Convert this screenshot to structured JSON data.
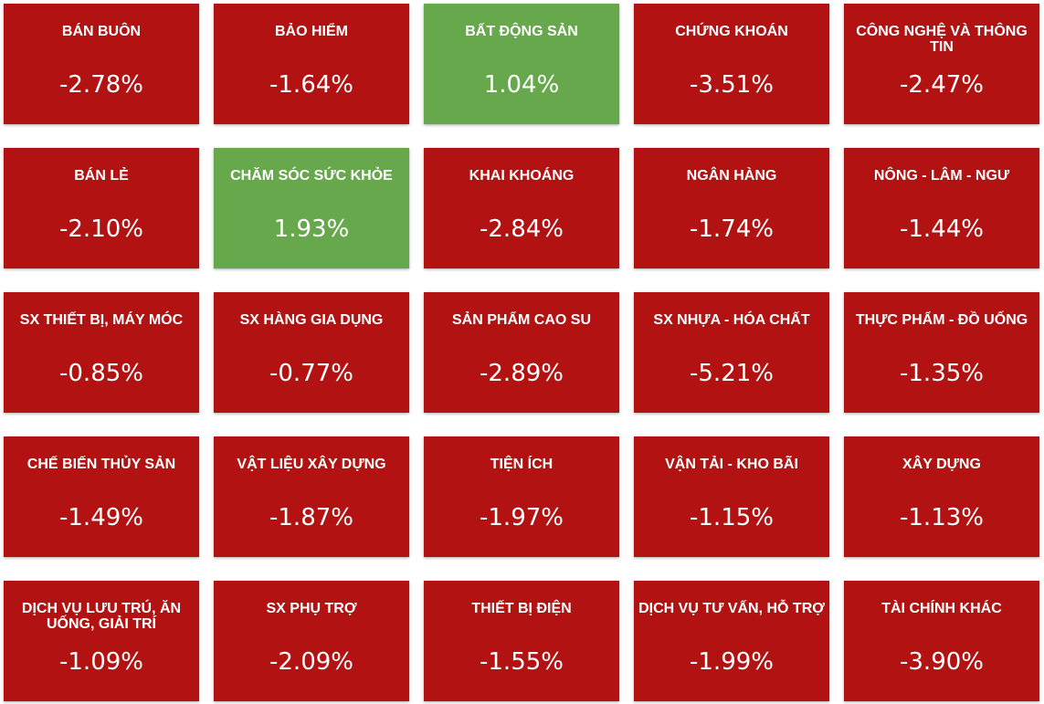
{
  "colors": {
    "down": "#b31212",
    "up": "#67a84d"
  },
  "sectors": [
    {
      "name": "BÁN BUÔN",
      "change": "-2.78%",
      "direction": "down"
    },
    {
      "name": "BẢO HIỂM",
      "change": "-1.64%",
      "direction": "down"
    },
    {
      "name": "BẤT ĐỘNG SẢN",
      "change": "1.04%",
      "direction": "up"
    },
    {
      "name": "CHỨNG KHOÁN",
      "change": "-3.51%",
      "direction": "down"
    },
    {
      "name": "CÔNG NGHỆ VÀ THÔNG TIN",
      "change": "-2.47%",
      "direction": "down"
    },
    {
      "name": "BÁN LẺ",
      "change": "-2.10%",
      "direction": "down"
    },
    {
      "name": "CHĂM SÓC SỨC KHỎE",
      "change": "1.93%",
      "direction": "up"
    },
    {
      "name": "KHAI KHOÁNG",
      "change": "-2.84%",
      "direction": "down"
    },
    {
      "name": "NGÂN HÀNG",
      "change": "-1.74%",
      "direction": "down"
    },
    {
      "name": "NÔNG - LÂM - NGƯ",
      "change": "-1.44%",
      "direction": "down"
    },
    {
      "name": "SX THIẾT BỊ, MÁY MÓC",
      "change": "-0.85%",
      "direction": "down"
    },
    {
      "name": "SX HÀNG GIA DỤNG",
      "change": "-0.77%",
      "direction": "down"
    },
    {
      "name": "SẢN PHẨM CAO SU",
      "change": "-2.89%",
      "direction": "down"
    },
    {
      "name": "SX NHỰA - HÓA CHẤT",
      "change": "-5.21%",
      "direction": "down"
    },
    {
      "name": "THỰC PHẨM - ĐỒ UỐNG",
      "change": "-1.35%",
      "direction": "down"
    },
    {
      "name": "CHẾ BIẾN THỦY SẢN",
      "change": "-1.49%",
      "direction": "down"
    },
    {
      "name": "VẬT LIỆU XÂY DỰNG",
      "change": "-1.87%",
      "direction": "down"
    },
    {
      "name": "TIỆN ÍCH",
      "change": "-1.97%",
      "direction": "down"
    },
    {
      "name": "VẬN TẢI - KHO BÃI",
      "change": "-1.15%",
      "direction": "down"
    },
    {
      "name": "XÂY DỰNG",
      "change": "-1.13%",
      "direction": "down"
    },
    {
      "name": "DỊCH VỤ LƯU TRÚ, ĂN UỐNG, GIẢI TRÍ",
      "change": "-1.09%",
      "direction": "down"
    },
    {
      "name": "SX PHỤ TRỢ",
      "change": "-2.09%",
      "direction": "down"
    },
    {
      "name": "THIẾT BỊ ĐIỆN",
      "change": "-1.55%",
      "direction": "down"
    },
    {
      "name": "DỊCH VỤ TƯ VẤN, HỖ TRỢ",
      "change": "-1.99%",
      "direction": "down"
    },
    {
      "name": "TÀI CHÍNH KHÁC",
      "change": "-3.90%",
      "direction": "down"
    }
  ]
}
